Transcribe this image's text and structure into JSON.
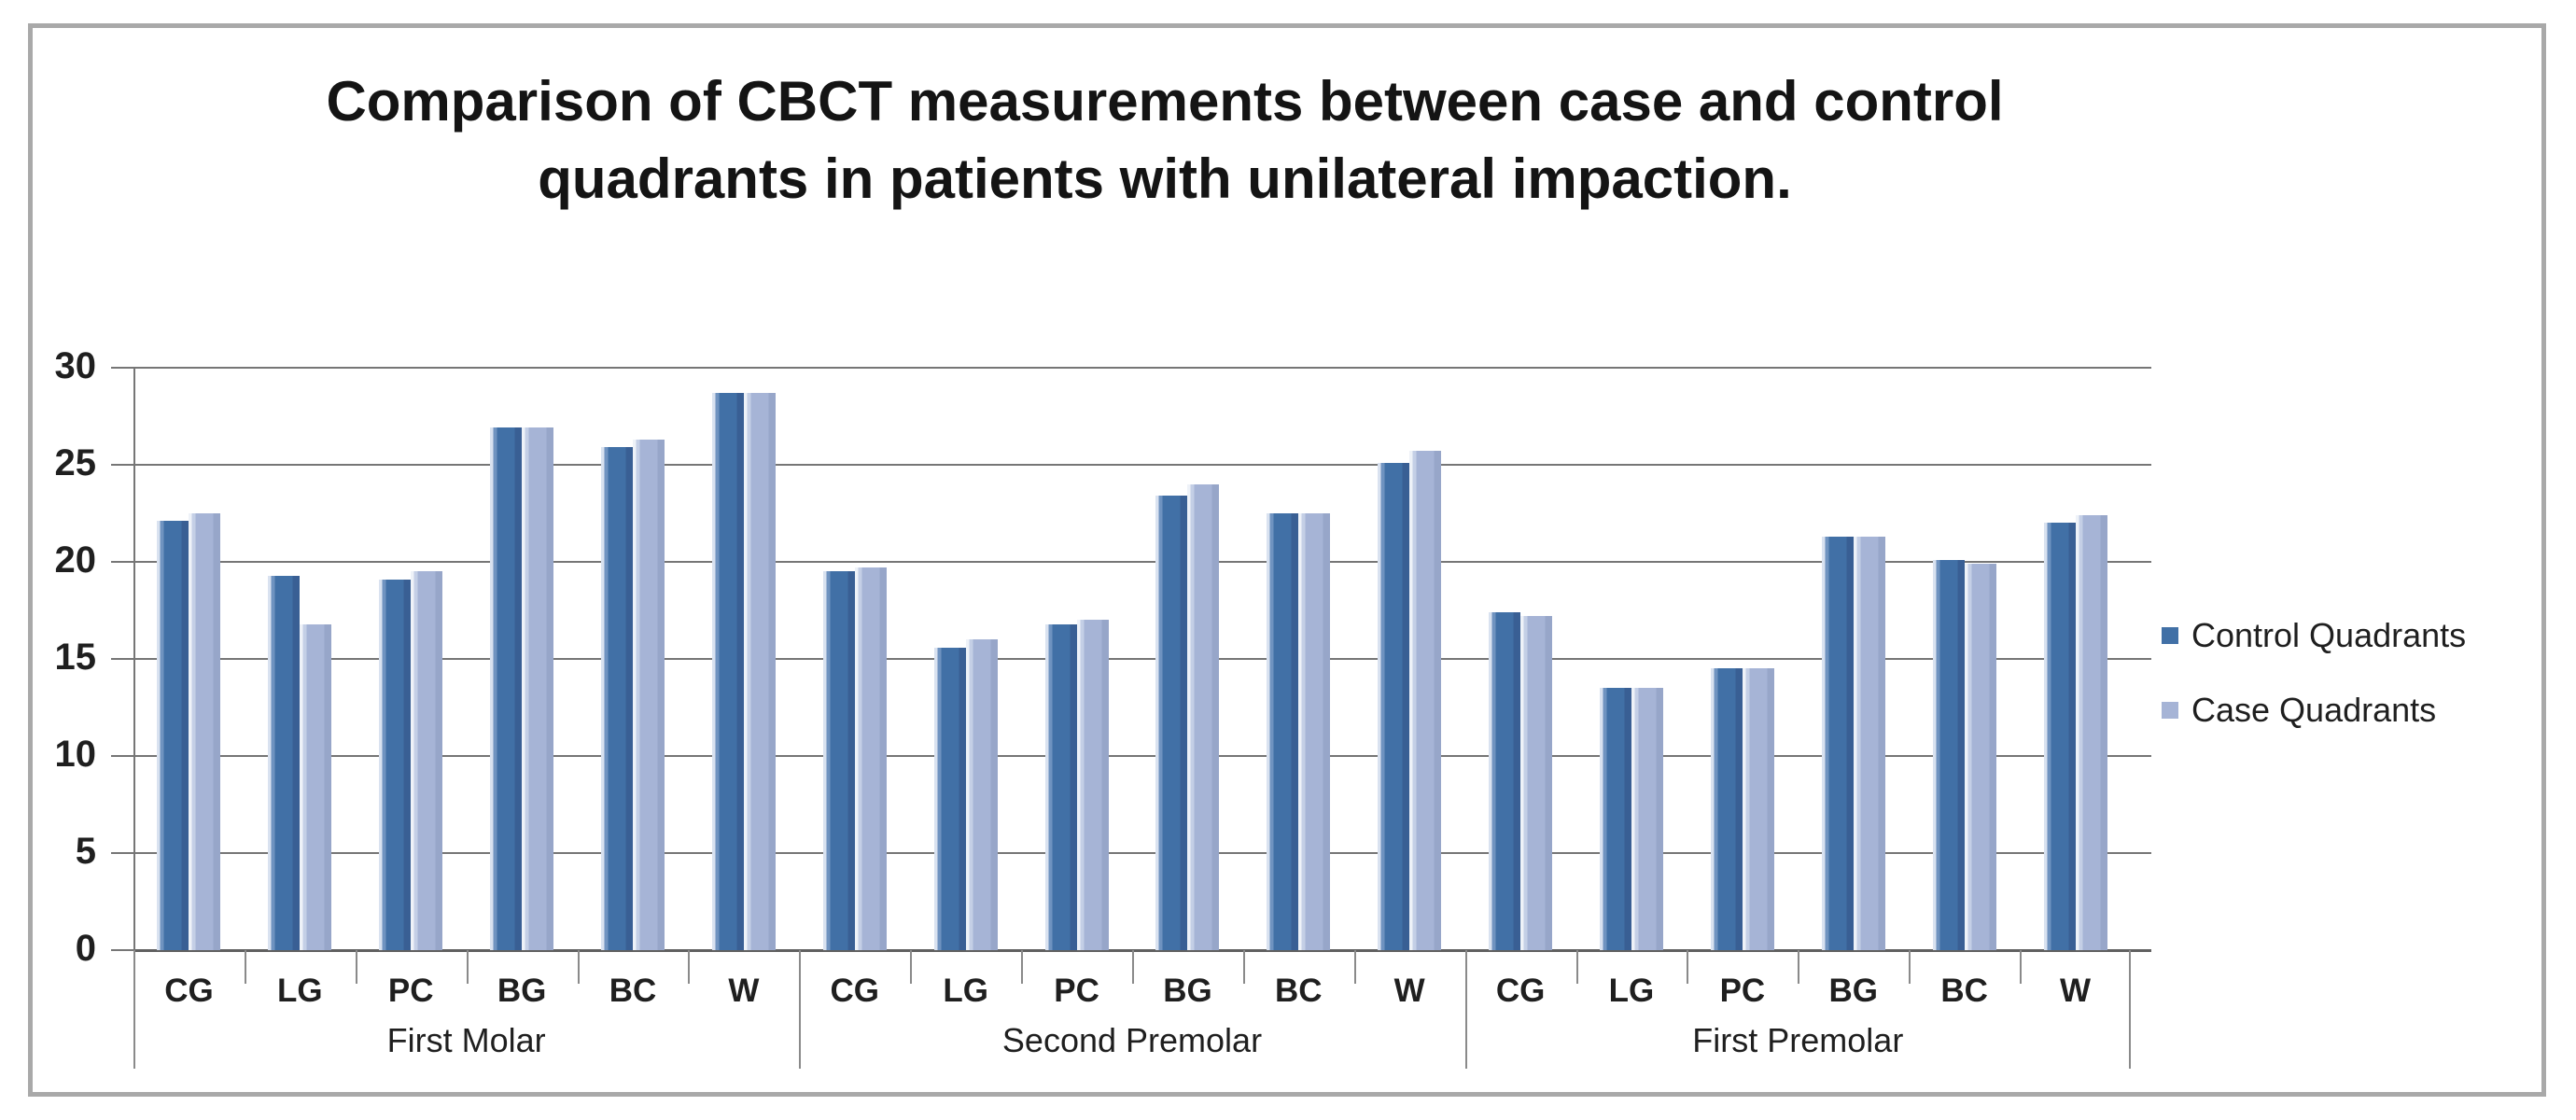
{
  "figure": {
    "title": "Comparison of CBCT measurements between case and control quadrants in patients with unilateral impaction."
  },
  "colors": {
    "control_series": "#4170a6",
    "case_series": "#a6b4d6",
    "gridline": "#767676",
    "border": "#a9a9a9",
    "text": "#1f1f1f"
  },
  "chart_data": {
    "type": "bar",
    "title": "Comparison of CBCT measurements between case and control quadrants in patients with unilateral impaction.",
    "xlabel": "",
    "ylabel": "",
    "ylim": [
      0,
      30
    ],
    "y_ticks": [
      0,
      5,
      10,
      15,
      20,
      25,
      30
    ],
    "grid": true,
    "legend_position": "right",
    "categories": [
      "CG",
      "LG",
      "PC",
      "BG",
      "BC",
      "W"
    ],
    "groups": [
      {
        "label": "First Molar",
        "control": [
          22.1,
          19.3,
          19.1,
          26.9,
          25.9,
          28.7
        ],
        "case": [
          22.5,
          16.8,
          19.5,
          26.9,
          26.3,
          28.7
        ]
      },
      {
        "label": "Second Premolar",
        "control": [
          19.5,
          15.6,
          16.8,
          23.4,
          22.5,
          25.1
        ],
        "case": [
          19.7,
          16.0,
          17.0,
          24.0,
          22.5,
          25.7
        ]
      },
      {
        "label": "First Premolar",
        "control": [
          17.4,
          13.5,
          14.5,
          21.3,
          20.1,
          22.0
        ],
        "case": [
          17.2,
          13.5,
          14.5,
          21.3,
          19.9,
          22.4
        ]
      }
    ],
    "series": [
      {
        "name": "Control Quadrants",
        "color": "#4170a6"
      },
      {
        "name": "Case Quadrants",
        "color": "#a6b4d6"
      }
    ]
  }
}
